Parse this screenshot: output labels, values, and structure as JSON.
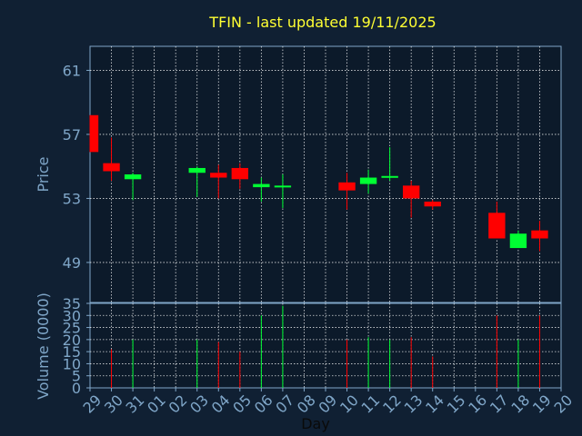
{
  "chart_data": {
    "type": "candlestick",
    "title": "TFIN - last updated 19/11/2025",
    "xlabel": "Day",
    "price_panel": {
      "ylabel": "Price",
      "ylim": [
        46.5,
        62.5
      ],
      "yticks": [
        49,
        53,
        57,
        61
      ]
    },
    "volume_panel": {
      "ylabel": "Volume (0000)",
      "ylim": [
        0,
        35
      ],
      "yticks": [
        0,
        5,
        10,
        15,
        20,
        25,
        30,
        35
      ]
    },
    "x_ticks": [
      "29",
      "30",
      "31",
      "01",
      "02",
      "03",
      "04",
      "05",
      "06",
      "07",
      "08",
      "09",
      "10",
      "11",
      "12",
      "13",
      "14",
      "15",
      "16",
      "17",
      "18",
      "19",
      "20"
    ],
    "candles": [
      {
        "day": "29",
        "open": 58.2,
        "high": 58.2,
        "low": 55.9,
        "close": 55.9,
        "volume": 0
      },
      {
        "day": "30",
        "open": 55.2,
        "high": 56.8,
        "low": 54.1,
        "close": 54.7,
        "volume": 16
      },
      {
        "day": "31",
        "open": 54.2,
        "high": 54.6,
        "low": 52.9,
        "close": 54.5,
        "volume": 20
      },
      {
        "day": "03",
        "open": 54.6,
        "high": 55.0,
        "low": 53.1,
        "close": 54.9,
        "volume": 20
      },
      {
        "day": "04",
        "open": 54.6,
        "high": 55.1,
        "low": 53.0,
        "close": 54.3,
        "volume": 19
      },
      {
        "day": "05",
        "open": 54.9,
        "high": 55.2,
        "low": 53.6,
        "close": 54.2,
        "volume": 15
      },
      {
        "day": "06",
        "open": 53.7,
        "high": 54.3,
        "low": 52.8,
        "close": 53.9,
        "volume": 30
      },
      {
        "day": "07",
        "open": 53.7,
        "high": 54.5,
        "low": 52.4,
        "close": 53.8,
        "volume": 34
      },
      {
        "day": "10",
        "open": 54.0,
        "high": 54.6,
        "low": 52.3,
        "close": 53.5,
        "volume": 20
      },
      {
        "day": "11",
        "open": 53.9,
        "high": 54.8,
        "low": 53.3,
        "close": 54.3,
        "volume": 21
      },
      {
        "day": "12",
        "open": 54.3,
        "high": 56.2,
        "low": 54.1,
        "close": 54.4,
        "volume": 20
      },
      {
        "day": "13",
        "open": 53.8,
        "high": 54.1,
        "low": 51.8,
        "close": 53.0,
        "volume": 21
      },
      {
        "day": "14",
        "open": 52.8,
        "high": 52.9,
        "low": 52.3,
        "close": 52.5,
        "volume": 13
      },
      {
        "day": "17",
        "open": 52.1,
        "high": 52.8,
        "low": 50.5,
        "close": 50.5,
        "volume": 30
      },
      {
        "day": "18",
        "open": 49.9,
        "high": 51.0,
        "low": 49.9,
        "close": 50.8,
        "volume": 20
      },
      {
        "day": "19",
        "open": 51.0,
        "high": 51.6,
        "low": 49.7,
        "close": 50.5,
        "volume": 30
      }
    ],
    "colors": {
      "background": "#102033",
      "plot_background": "#0c1a2a",
      "axis": "#7fa6c8",
      "grid": "#ffffff",
      "up": "#00ff33",
      "down": "#ff0000",
      "title": "#ffff33"
    },
    "grid": true
  }
}
